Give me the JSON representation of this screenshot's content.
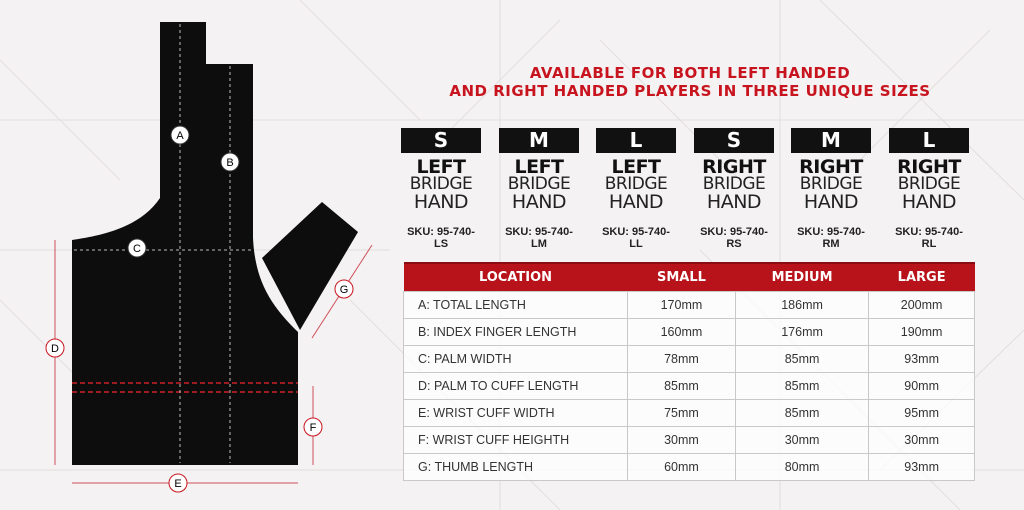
{
  "headline": [
    "AVAILABLE FOR BOTH LEFT HANDED",
    "AND RIGHT HANDED PLAYERS IN THREE UNIQUE SIZES"
  ],
  "colors": {
    "accent": "#c8141e",
    "glove": "#0d0d0d",
    "background": "#f4f2f2"
  },
  "diagram_labels": [
    "A",
    "B",
    "C",
    "D",
    "E",
    "F",
    "G"
  ],
  "sizes": [
    {
      "size": "S",
      "hand": "LEFT",
      "line2": "BRIDGE",
      "line3": "HAND",
      "sku": "SKU: 95-740-LS"
    },
    {
      "size": "M",
      "hand": "LEFT",
      "line2": "BRIDGE",
      "line3": "HAND",
      "sku": "SKU: 95-740-LM"
    },
    {
      "size": "L",
      "hand": "LEFT",
      "line2": "BRIDGE",
      "line3": "HAND",
      "sku": "SKU: 95-740-LL"
    },
    {
      "size": "S",
      "hand": "RIGHT",
      "line2": "BRIDGE",
      "line3": "HAND",
      "sku": "SKU: 95-740-RS"
    },
    {
      "size": "M",
      "hand": "RIGHT",
      "line2": "BRIDGE",
      "line3": "HAND",
      "sku": "SKU: 95-740-RM"
    },
    {
      "size": "L",
      "hand": "RIGHT",
      "line2": "BRIDGE",
      "line3": "HAND",
      "sku": "SKU: 95-740-RL"
    }
  ],
  "table": {
    "headers": [
      "LOCATION",
      "SMALL",
      "MEDIUM",
      "LARGE"
    ],
    "rows": [
      [
        "A:  TOTAL LENGTH",
        "170mm",
        "186mm",
        "200mm"
      ],
      [
        "B:  INDEX FINGER LENGTH",
        "160mm",
        "176mm",
        "190mm"
      ],
      [
        "C:  PALM WIDTH",
        "78mm",
        "85mm",
        "93mm"
      ],
      [
        "D:  PALM TO CUFF LENGTH",
        "85mm",
        "85mm",
        "90mm"
      ],
      [
        "E:  WRIST CUFF WIDTH",
        "75mm",
        "85mm",
        "95mm"
      ],
      [
        "F:  WRIST CUFF HEIGHTH",
        "30mm",
        "30mm",
        "30mm"
      ],
      [
        "G:  THUMB LENGTH",
        "60mm",
        "80mm",
        "93mm"
      ]
    ]
  }
}
